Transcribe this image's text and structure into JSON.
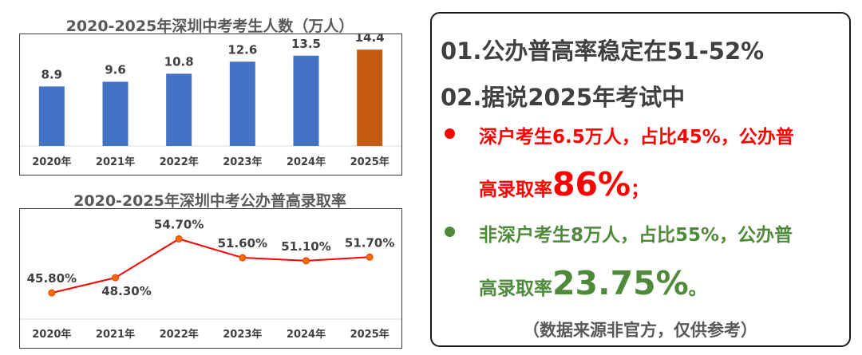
{
  "chart_data": [
    {
      "type": "bar",
      "title": "2020-2025年深圳中考考生人数（万人）",
      "categories": [
        "2020年",
        "2021年",
        "2022年",
        "2023年",
        "2024年",
        "2025年"
      ],
      "values": [
        8.9,
        9.6,
        10.8,
        12.6,
        13.5,
        14.4
      ],
      "value_labels": [
        "8.9",
        "9.6",
        "10.8",
        "12.6",
        "13.5",
        "14.4"
      ],
      "colors": [
        "#4472c4",
        "#4472c4",
        "#4472c4",
        "#4472c4",
        "#4472c4",
        "#c55a11"
      ],
      "ylim": [
        0,
        15.5
      ],
      "grid": false,
      "legend": "none"
    },
    {
      "type": "line",
      "title": "2020-2025年深圳中考公办普高录取率",
      "categories": [
        "2020年",
        "2021年",
        "2022年",
        "2023年",
        "2024年",
        "2025年"
      ],
      "values": [
        45.8,
        48.3,
        54.7,
        51.6,
        51.1,
        51.7
      ],
      "value_labels": [
        "45.80%",
        "48.30%",
        "54.70%",
        "51.60%",
        "51.10%",
        "51.70%"
      ],
      "label_positions": [
        "above",
        "below",
        "above",
        "above",
        "above",
        "above"
      ],
      "line_color": "#ff0000",
      "marker_fill": "#ff6a00",
      "ylim": [
        42,
        57
      ],
      "grid": false,
      "legend": "none"
    }
  ],
  "panel": {
    "item1": "01.公办普高率稳定在51-52%",
    "item2": "02.据说2025年考试中",
    "item3": {
      "line_a": "深户考生6.5万人，占比45%，公办普",
      "line_b_prefix": "高录取率",
      "line_b_big": "86%",
      "line_b_suffix": "；",
      "color": "#ff0000"
    },
    "item4": {
      "line_a": "非深户考生8万人，占比55%，公办普",
      "line_b_prefix": "高录取率",
      "line_b_big": "23.75%",
      "line_b_suffix": "。",
      "color": "#4e8a3a"
    },
    "footnote": "（数据来源非官方，仅供参考）",
    "text_color": "#404040"
  }
}
